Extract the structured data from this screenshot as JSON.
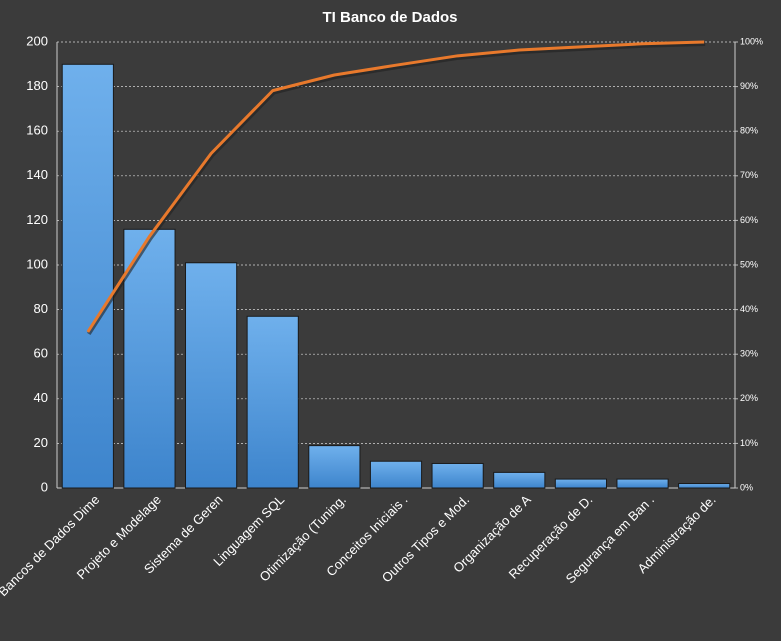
{
  "chart_data": {
    "type": "pareto",
    "title": "TI Banco de Dados",
    "categories": [
      "Bancos de Dados Dime",
      "Projeto e Modelage",
      "Sistema de Geren",
      "Linguagem SQL",
      "Otimização (Tuning.",
      "Conceitos Iniciais .",
      "Outros Tipos e Mod.",
      "Organização de A",
      "Recuperação de D.",
      "Segurança em Ban .",
      "Administração de."
    ],
    "series": [
      {
        "type": "bar",
        "color": "#4a90d9",
        "values": [
          190,
          116,
          101,
          77,
          19,
          12,
          11,
          7,
          4,
          4,
          2
        ]
      },
      {
        "type": "line",
        "axis": "y2",
        "color": "#e8792c",
        "values": [
          35,
          56.4,
          75,
          89.1,
          92.6,
          94.8,
          96.9,
          98.2,
          98.9,
          99.6,
          100
        ]
      }
    ],
    "ylim": [
      0,
      200
    ],
    "yticks": [
      0,
      20,
      40,
      60,
      80,
      100,
      120,
      140,
      160,
      180,
      200
    ],
    "y2lim": [
      0,
      100
    ],
    "y2ticks": [
      {
        "value": 0,
        "label": "0%"
      },
      {
        "value": 10,
        "label": "10%"
      },
      {
        "value": 20,
        "label": "20%"
      },
      {
        "value": 30,
        "label": "30%"
      },
      {
        "value": 40,
        "label": "40%"
      },
      {
        "value": 50,
        "label": "50%"
      },
      {
        "value": 60,
        "label": "60%"
      },
      {
        "value": 70,
        "label": "70%"
      },
      {
        "value": 80,
        "label": "80%"
      },
      {
        "value": 90,
        "label": "90%"
      },
      {
        "value": 100,
        "label": "100%"
      }
    ],
    "grid": true
  }
}
